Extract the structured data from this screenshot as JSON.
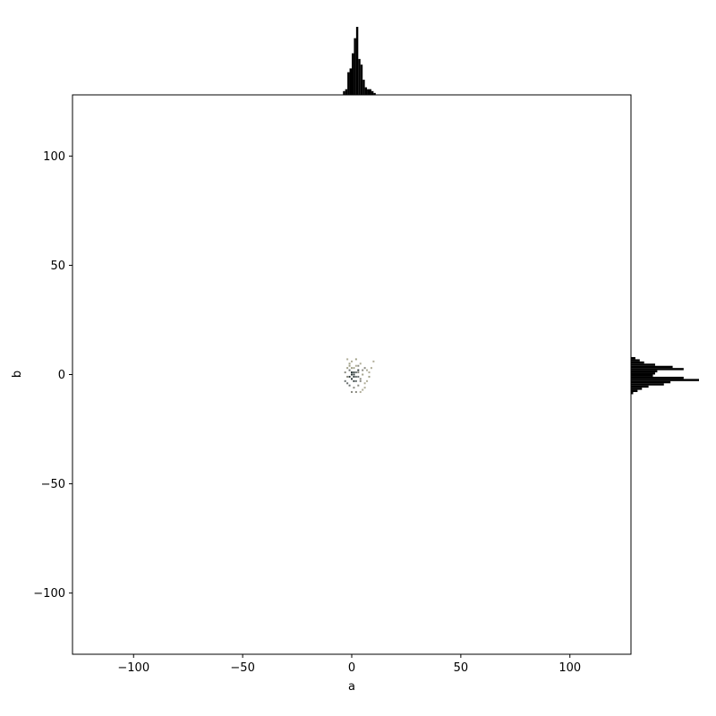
{
  "chart_data": {
    "type": "scatter",
    "subtype": "joint-plot-with-marginal-histograms",
    "title": "",
    "xlabel": "a",
    "ylabel": "b",
    "xlim": [
      -128,
      128
    ],
    "ylim": [
      -128,
      128
    ],
    "x_ticks": [
      {
        "value": -100,
        "label": "−100"
      },
      {
        "value": -50,
        "label": "−50"
      },
      {
        "value": 0,
        "label": "0"
      },
      {
        "value": 50,
        "label": "50"
      },
      {
        "value": 100,
        "label": "100"
      }
    ],
    "y_ticks": [
      {
        "value": 100,
        "label": "100"
      },
      {
        "value": 50,
        "label": "50"
      },
      {
        "value": 0,
        "label": "0"
      },
      {
        "value": -50,
        "label": "−50"
      },
      {
        "value": -100,
        "label": "−100"
      }
    ],
    "grid": false,
    "legend": "none",
    "marker_colors": [
      "#8a8a80",
      "#a0a088",
      "#6a7070",
      "#2f3a3a",
      "#b0ad98"
    ],
    "histogram_color": "#000000",
    "points": [
      {
        "x": 0,
        "y": 1,
        "c": 3
      },
      {
        "x": 1,
        "y": 0,
        "c": 3
      },
      {
        "x": -1,
        "y": 2,
        "c": 2
      },
      {
        "x": 2,
        "y": -1,
        "c": 2
      },
      {
        "x": 0,
        "y": -2,
        "c": 3
      },
      {
        "x": 3,
        "y": 1,
        "c": 0
      },
      {
        "x": -2,
        "y": -1,
        "c": 0
      },
      {
        "x": 1,
        "y": 3,
        "c": 1
      },
      {
        "x": 4,
        "y": -2,
        "c": 0
      },
      {
        "x": -1,
        "y": 5,
        "c": 1
      },
      {
        "x": 2,
        "y": 4,
        "c": 4
      },
      {
        "x": 5,
        "y": 0,
        "c": 1
      },
      {
        "x": -3,
        "y": -3,
        "c": 2
      },
      {
        "x": 6,
        "y": -4,
        "c": 4
      },
      {
        "x": 3,
        "y": -5,
        "c": 0
      },
      {
        "x": -2,
        "y": 3,
        "c": 1
      },
      {
        "x": 7,
        "y": 2,
        "c": 4
      },
      {
        "x": 0,
        "y": 6,
        "c": 4
      },
      {
        "x": 4,
        "y": 5,
        "c": 4
      },
      {
        "x": 1,
        "y": -6,
        "c": 0
      },
      {
        "x": 8,
        "y": -1,
        "c": 1
      },
      {
        "x": -1,
        "y": -5,
        "c": 2
      },
      {
        "x": 5,
        "y": -7,
        "c": 4
      },
      {
        "x": 2,
        "y": 7,
        "c": 1
      },
      {
        "x": 9,
        "y": 3,
        "c": 4
      },
      {
        "x": -2,
        "y": 7,
        "c": 4
      },
      {
        "x": 10,
        "y": 6,
        "c": 4
      },
      {
        "x": 6,
        "y": 3,
        "c": 0
      },
      {
        "x": 3,
        "y": 2,
        "c": 3
      },
      {
        "x": 1,
        "y": 1,
        "c": 3
      },
      {
        "x": -1,
        "y": -1,
        "c": 3
      },
      {
        "x": 2,
        "y": -3,
        "c": 2
      },
      {
        "x": 4,
        "y": -3,
        "c": 0
      },
      {
        "x": 0,
        "y": 3,
        "c": 1
      },
      {
        "x": 3,
        "y": -1,
        "c": 2
      },
      {
        "x": 5,
        "y": 2,
        "c": 0
      },
      {
        "x": -3,
        "y": 1,
        "c": 0
      },
      {
        "x": 7,
        "y": -3,
        "c": 4
      },
      {
        "x": 1,
        "y": -3,
        "c": 3
      },
      {
        "x": 2,
        "y": 1,
        "c": 2
      },
      {
        "x": 6,
        "y": -6,
        "c": 4
      },
      {
        "x": 4,
        "y": -8,
        "c": 4
      },
      {
        "x": 0,
        "y": -8,
        "c": 0
      },
      {
        "x": -1,
        "y": 4,
        "c": 1
      },
      {
        "x": 3,
        "y": 4,
        "c": 0
      },
      {
        "x": 8,
        "y": 1,
        "c": 4
      },
      {
        "x": -2,
        "y": -4,
        "c": 2
      },
      {
        "x": 2,
        "y": -8,
        "c": 0
      },
      {
        "x": 1,
        "y": -1,
        "c": 3
      },
      {
        "x": 0,
        "y": 0,
        "c": 3
      }
    ],
    "marginal_x": {
      "bins": [
        -4,
        -3,
        -2,
        -1,
        0,
        1,
        2,
        3,
        4,
        5,
        6,
        7,
        8,
        9,
        10
      ],
      "counts": [
        2,
        3,
        12,
        14,
        22,
        30,
        36,
        19,
        16,
        8,
        4,
        3,
        3,
        2,
        1
      ]
    },
    "marginal_y": {
      "bins": [
        -9,
        -8,
        -7,
        -6,
        -5,
        -4,
        -3,
        -2,
        -1,
        0,
        1,
        2,
        3,
        4,
        5,
        6,
        7
      ],
      "counts": [
        1,
        3,
        5,
        8,
        15,
        18,
        31,
        24,
        10,
        11,
        12,
        24,
        19,
        11,
        6,
        4,
        2
      ]
    }
  }
}
